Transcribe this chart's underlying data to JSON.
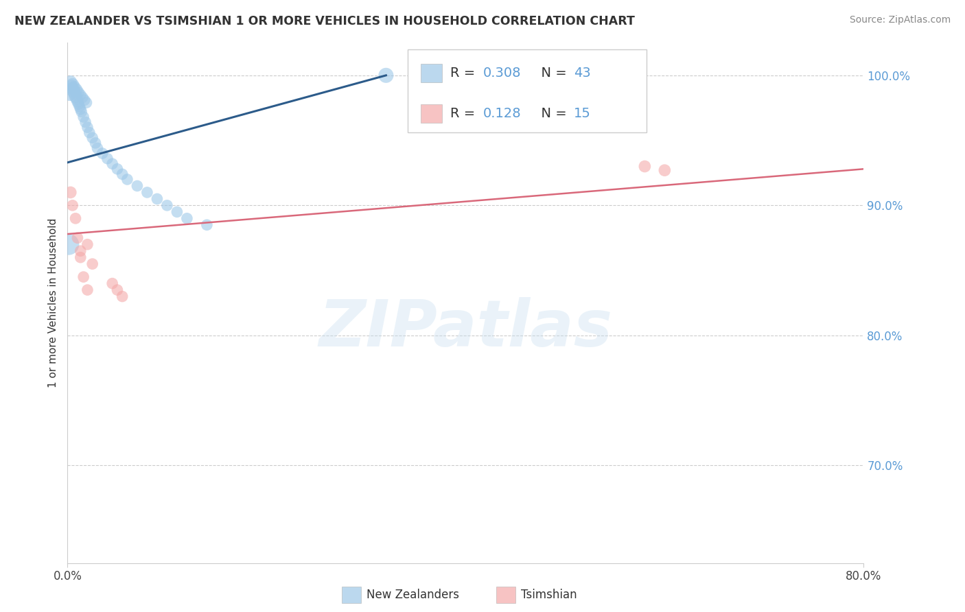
{
  "title": "NEW ZEALANDER VS TSIMSHIAN 1 OR MORE VEHICLES IN HOUSEHOLD CORRELATION CHART",
  "source": "Source: ZipAtlas.com",
  "ylabel": "1 or more Vehicles in Household",
  "xlim": [
    0.0,
    0.8
  ],
  "ylim": [
    0.625,
    1.025
  ],
  "nz_R": 0.308,
  "nz_N": 43,
  "ts_R": 0.128,
  "ts_N": 15,
  "watermark": "ZIPatlas",
  "blue_color": "#9ec8e8",
  "pink_color": "#f4aaaa",
  "blue_line_color": "#2c5b8a",
  "pink_line_color": "#d9687a",
  "nz_x": [
    0.002,
    0.004,
    0.005,
    0.006,
    0.007,
    0.008,
    0.009,
    0.01,
    0.011,
    0.012,
    0.013,
    0.014,
    0.016,
    0.018,
    0.02,
    0.022,
    0.025,
    0.028,
    0.03,
    0.035,
    0.04,
    0.045,
    0.05,
    0.055,
    0.06,
    0.07,
    0.08,
    0.09,
    0.1,
    0.11,
    0.12,
    0.14,
    0.003,
    0.005,
    0.007,
    0.009,
    0.011,
    0.013,
    0.015,
    0.017,
    0.019,
    0.001,
    0.32
  ],
  "nz_y": [
    0.985,
    0.992,
    0.99,
    0.988,
    0.986,
    0.984,
    0.982,
    0.98,
    0.978,
    0.976,
    0.974,
    0.972,
    0.968,
    0.964,
    0.96,
    0.956,
    0.952,
    0.948,
    0.944,
    0.94,
    0.936,
    0.932,
    0.928,
    0.924,
    0.92,
    0.915,
    0.91,
    0.905,
    0.9,
    0.895,
    0.89,
    0.885,
    0.995,
    0.993,
    0.991,
    0.989,
    0.987,
    0.985,
    0.983,
    0.981,
    0.979,
    0.87,
    1.0
  ],
  "nz_sizes": [
    18,
    18,
    20,
    22,
    20,
    22,
    18,
    18,
    16,
    16,
    16,
    16,
    16,
    16,
    16,
    16,
    16,
    16,
    16,
    16,
    16,
    16,
    16,
    16,
    16,
    16,
    16,
    16,
    16,
    16,
    16,
    16,
    20,
    20,
    18,
    18,
    16,
    16,
    16,
    16,
    16,
    55,
    28
  ],
  "ts_x": [
    0.003,
    0.005,
    0.008,
    0.01,
    0.013,
    0.016,
    0.02,
    0.025,
    0.045,
    0.05,
    0.055,
    0.013,
    0.02,
    0.58,
    0.6
  ],
  "ts_y": [
    0.91,
    0.9,
    0.89,
    0.875,
    0.86,
    0.845,
    0.835,
    0.855,
    0.84,
    0.835,
    0.83,
    0.865,
    0.87,
    0.93,
    0.927
  ],
  "ts_sizes": [
    18,
    16,
    16,
    16,
    16,
    16,
    16,
    16,
    16,
    16,
    16,
    16,
    16,
    18,
    18
  ],
  "nz_line_x": [
    0.0,
    0.32
  ],
  "nz_line_y": [
    0.933,
    1.0
  ],
  "ts_line_x": [
    0.0,
    0.8
  ],
  "ts_line_y": [
    0.878,
    0.928
  ],
  "ytick_positions": [
    0.7,
    0.8,
    0.9,
    1.0
  ],
  "ytick_labels": [
    "70.0%",
    "80.0%",
    "90.0%",
    "100.0%"
  ],
  "background_color": "#ffffff",
  "grid_color": "#cccccc"
}
